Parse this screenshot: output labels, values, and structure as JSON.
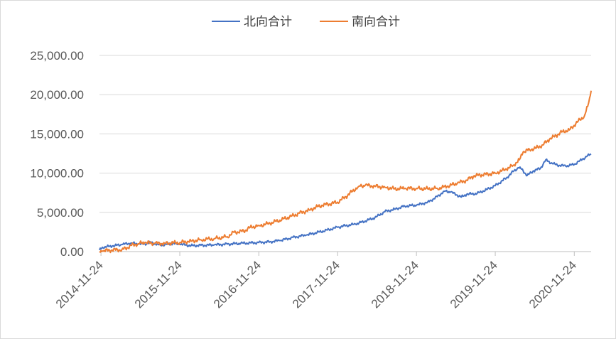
{
  "chart_data": {
    "type": "line",
    "title": "",
    "xlabel": "",
    "ylabel": "",
    "ylim": [
      0,
      25000
    ],
    "grid": true,
    "legend_position": "top-center",
    "y_ticks": [
      "0.00",
      "5,000.00",
      "10,000.00",
      "15,000.00",
      "20,000.00",
      "25,000.00"
    ],
    "x_ticks": [
      "2014-11-24",
      "2015-11-24",
      "2016-11-24",
      "2017-11-24",
      "2018-11-24",
      "2019-11-24",
      "2020-11-24"
    ],
    "x_range": [
      "2014-11-17",
      "2021-02-10"
    ],
    "series": [
      {
        "name": "北向合计",
        "color": "#4472C4",
        "points": [
          [
            "2014-11-17",
            200
          ],
          [
            "2014-12-01",
            550
          ],
          [
            "2015-01-15",
            700
          ],
          [
            "2015-03-01",
            900
          ],
          [
            "2015-04-15",
            1100
          ],
          [
            "2015-05-15",
            950
          ],
          [
            "2015-06-15",
            1000
          ],
          [
            "2015-07-15",
            1150
          ],
          [
            "2015-08-15",
            900
          ],
          [
            "2015-09-15",
            850
          ],
          [
            "2015-10-15",
            1050
          ],
          [
            "2015-11-24",
            950
          ],
          [
            "2016-01-15",
            750
          ],
          [
            "2016-03-01",
            800
          ],
          [
            "2016-05-01",
            850
          ],
          [
            "2016-07-01",
            950
          ],
          [
            "2016-09-01",
            1050
          ],
          [
            "2016-11-24",
            1150
          ],
          [
            "2017-01-15",
            1250
          ],
          [
            "2017-03-01",
            1400
          ],
          [
            "2017-05-01",
            1800
          ],
          [
            "2017-07-01",
            2100
          ],
          [
            "2017-09-01",
            2500
          ],
          [
            "2017-10-15",
            2800
          ],
          [
            "2017-11-24",
            3100
          ],
          [
            "2018-01-01",
            3300
          ],
          [
            "2018-02-15",
            3500
          ],
          [
            "2018-04-01",
            3900
          ],
          [
            "2018-05-15",
            4300
          ],
          [
            "2018-07-01",
            5100
          ],
          [
            "2018-08-15",
            5400
          ],
          [
            "2018-10-01",
            5800
          ],
          [
            "2018-11-24",
            5900
          ],
          [
            "2019-01-15",
            6300
          ],
          [
            "2019-03-01",
            7000
          ],
          [
            "2019-04-01",
            7700
          ],
          [
            "2019-05-01",
            7600
          ],
          [
            "2019-06-01",
            7200
          ],
          [
            "2019-06-20",
            6950
          ],
          [
            "2019-07-15",
            7300
          ],
          [
            "2019-09-01",
            7400
          ],
          [
            "2019-10-15",
            7900
          ],
          [
            "2019-11-24",
            8400
          ],
          [
            "2020-01-15",
            9400
          ],
          [
            "2020-02-15",
            10200
          ],
          [
            "2020-03-10",
            10700
          ],
          [
            "2020-03-25",
            10500
          ],
          [
            "2020-04-20",
            9700
          ],
          [
            "2020-05-20",
            10300
          ],
          [
            "2020-06-20",
            10600
          ],
          [
            "2020-07-15",
            11700
          ],
          [
            "2020-08-15",
            11200
          ],
          [
            "2020-09-15",
            11000
          ],
          [
            "2020-10-15",
            10900
          ],
          [
            "2020-11-24",
            11100
          ],
          [
            "2020-12-20",
            11600
          ],
          [
            "2021-01-20",
            12100
          ],
          [
            "2021-02-10",
            12450
          ]
        ]
      },
      {
        "name": "南向合计",
        "color": "#ED7D31",
        "points": [
          [
            "2014-11-17",
            0
          ],
          [
            "2014-12-01",
            80
          ],
          [
            "2015-01-15",
            200
          ],
          [
            "2015-03-01",
            250
          ],
          [
            "2015-03-25",
            500
          ],
          [
            "2015-04-15",
            800
          ],
          [
            "2015-05-15",
            1000
          ],
          [
            "2015-06-15",
            1150
          ],
          [
            "2015-08-01",
            1050
          ],
          [
            "2015-09-15",
            1050
          ],
          [
            "2015-11-24",
            1150
          ],
          [
            "2016-01-15",
            1350
          ],
          [
            "2016-03-01",
            1500
          ],
          [
            "2016-05-01",
            1650
          ],
          [
            "2016-07-01",
            1900
          ],
          [
            "2016-08-01",
            2450
          ],
          [
            "2016-09-15",
            2600
          ],
          [
            "2016-10-15",
            3100
          ],
          [
            "2016-11-24",
            3300
          ],
          [
            "2017-01-15",
            3600
          ],
          [
            "2017-03-01",
            4000
          ],
          [
            "2017-04-15",
            4400
          ],
          [
            "2017-06-01",
            4900
          ],
          [
            "2017-07-15",
            5300
          ],
          [
            "2017-08-15",
            5650
          ],
          [
            "2017-09-15",
            5900
          ],
          [
            "2017-11-24",
            6300
          ],
          [
            "2018-01-01",
            7000
          ],
          [
            "2018-02-01",
            7700
          ],
          [
            "2018-03-01",
            8300
          ],
          [
            "2018-04-01",
            8450
          ],
          [
            "2018-05-15",
            8350
          ],
          [
            "2018-07-01",
            8200
          ],
          [
            "2018-08-15",
            8000
          ],
          [
            "2018-10-01",
            8050
          ],
          [
            "2018-11-24",
            8050
          ],
          [
            "2019-01-15",
            8000
          ],
          [
            "2019-03-01",
            8050
          ],
          [
            "2019-04-15",
            8300
          ],
          [
            "2019-06-01",
            8700
          ],
          [
            "2019-07-15",
            9100
          ],
          [
            "2019-08-15",
            9600
          ],
          [
            "2019-09-15",
            9750
          ],
          [
            "2019-11-24",
            10000
          ],
          [
            "2020-01-15",
            10500
          ],
          [
            "2020-02-15",
            11000
          ],
          [
            "2020-03-15",
            11700
          ],
          [
            "2020-04-01",
            12700
          ],
          [
            "2020-05-01",
            13000
          ],
          [
            "2020-06-01",
            13200
          ],
          [
            "2020-07-01",
            13600
          ],
          [
            "2020-08-01",
            14300
          ],
          [
            "2020-09-01",
            14800
          ],
          [
            "2020-10-01",
            15300
          ],
          [
            "2020-11-01",
            15500
          ],
          [
            "2020-12-01",
            16300
          ],
          [
            "2020-12-20",
            16800
          ],
          [
            "2021-01-10",
            17300
          ],
          [
            "2021-01-25",
            18500
          ],
          [
            "2021-02-03",
            19600
          ],
          [
            "2021-02-10",
            20500
          ]
        ]
      }
    ]
  }
}
